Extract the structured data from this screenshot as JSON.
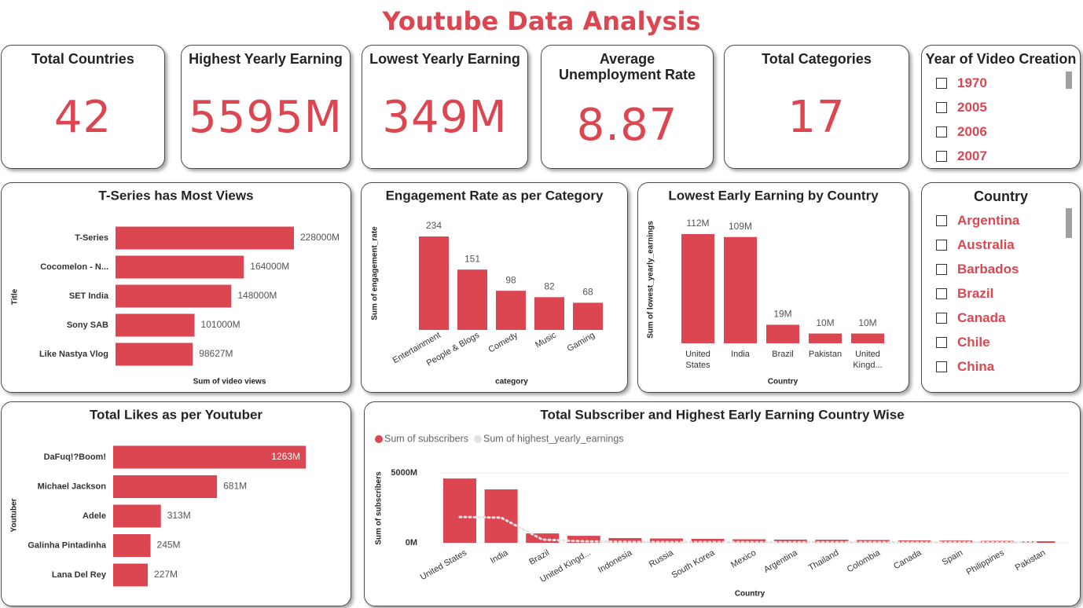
{
  "title": "Youtube Data Analysis",
  "cards": [
    {
      "title": "Total Countries",
      "value": "42"
    },
    {
      "title": "Highest Yearly Earning",
      "value": "5595M"
    },
    {
      "title": "Lowest Yearly Earning",
      "value": "349M"
    },
    {
      "title": "Average Unemployment Rate",
      "value": "8.87"
    },
    {
      "title": "Total Categories",
      "value": "17"
    }
  ],
  "slicers": [
    {
      "title": "Year of Video Creation",
      "items": [
        "1970",
        "2005",
        "2006",
        "2007"
      ]
    },
    {
      "title": "Country",
      "items": [
        "Argentina",
        "Australia",
        "Barbados",
        "Brazil",
        "Canada",
        "Chile",
        "China"
      ]
    }
  ],
  "chart_data": [
    {
      "type": "hbar",
      "title": "T-Series has Most Views",
      "y_label": "Title",
      "x_label": "Sum of video views",
      "categories": [
        "T-Series",
        "Cocomelon - N...",
        "SET India",
        "Sony SAB",
        "Like Nastya Vlog"
      ],
      "values": [
        228000,
        164000,
        148000,
        101000,
        98627
      ],
      "value_labels": [
        "228000M",
        "164000M",
        "148000M",
        "101000M",
        "98627M"
      ],
      "color": "#dc4651"
    },
    {
      "type": "bar",
      "title": "Engagement Rate as per Category",
      "y_label": "Sum of engagement_rate",
      "x_label": "category",
      "categories": [
        "Entertainment",
        "People & Blogs",
        "Comedy",
        "Music",
        "Gaming"
      ],
      "values": [
        234,
        151,
        98,
        82,
        68
      ],
      "color": "#dc4651"
    },
    {
      "type": "bar",
      "title": "Lowest Early Earning by Country",
      "y_label": "Sum of lowest_yearly_earnings",
      "x_label": "Country",
      "categories": [
        "United States",
        "India",
        "Brazil",
        "Pakistan",
        "United Kingd..."
      ],
      "values": [
        112,
        109,
        19,
        10,
        10
      ],
      "value_labels": [
        "112M",
        "109M",
        "19M",
        "10M",
        "10M"
      ],
      "color": "#dc4651"
    },
    {
      "type": "hbar",
      "title": "Total Likes as per Youtuber",
      "y_label": "Youtuber",
      "categories": [
        "DaFuq!?Boom!",
        "Michael Jackson",
        "Adele",
        "Galinha Pintadinha",
        "Lana Del Rey"
      ],
      "values": [
        1263,
        681,
        313,
        245,
        227
      ],
      "value_labels": [
        "1263M",
        "681M",
        "313M",
        "245M",
        "227M"
      ],
      "color": "#dc4651"
    },
    {
      "type": "combo",
      "title": "Total Subscriber and Highest Early Earning Country Wise",
      "y_label": "Sum of subscribers",
      "x_label": "Country",
      "categories": [
        "United States",
        "India",
        "Brazil",
        "United Kingd...",
        "Indonesia",
        "Russia",
        "South Korea",
        "Mexico",
        "Argentina",
        "Thailand",
        "Colombia",
        "Canada",
        "Spain",
        "Philippines",
        "Pakistan"
      ],
      "series": [
        {
          "name": "Sum of subscribers",
          "type": "bar",
          "color": "#dc4651",
          "values": [
            4600,
            3820,
            670,
            500,
            340,
            310,
            280,
            250,
            230,
            220,
            200,
            170,
            160,
            140,
            110
          ]
        },
        {
          "name": "Sum of highest_yearly_earnings",
          "type": "line",
          "color": "#e3e3e3",
          "values": [
            1850,
            1800,
            230,
            110,
            60,
            50,
            50,
            45,
            45,
            40,
            40,
            35,
            35,
            30,
            25
          ]
        }
      ],
      "ylim": [
        0,
        5000
      ],
      "yticks": [
        {
          "value": 0,
          "label": "0M"
        },
        {
          "value": 5000,
          "label": "5000M"
        }
      ],
      "grid": true
    }
  ]
}
